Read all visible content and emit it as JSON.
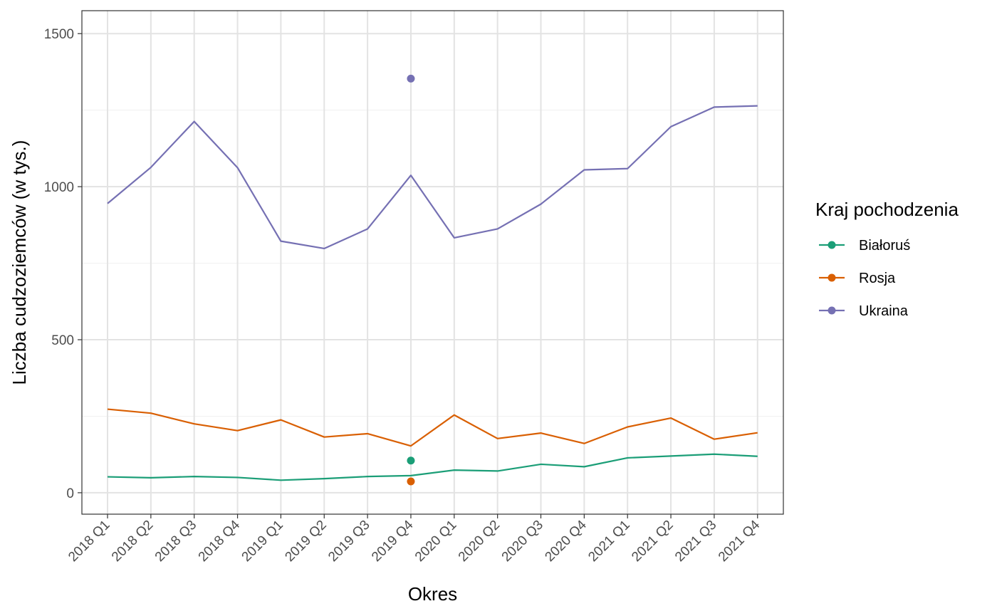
{
  "chart_data": {
    "type": "line",
    "title": "",
    "xlabel": "Okres",
    "ylabel": "Liczba cudzoziemców (w tys.)",
    "categories": [
      "2018 Q1",
      "2018 Q2",
      "2018 Q3",
      "2018 Q4",
      "2019 Q1",
      "2019 Q2",
      "2019 Q3",
      "2019 Q4",
      "2020 Q1",
      "2020 Q2",
      "2020 Q3",
      "2020 Q4",
      "2021 Q1",
      "2021 Q2",
      "2021 Q3",
      "2021 Q4"
    ],
    "ylim": [
      -70,
      1575
    ],
    "yticks": [
      0,
      500,
      1000,
      1500
    ],
    "grid": true,
    "legend_title": "Kraj pochodzenia",
    "legend_position": "right",
    "series": [
      {
        "name": "Białoruś",
        "color": "#1b9e77",
        "values": [
          52,
          49,
          53,
          50,
          41,
          46,
          53,
          56,
          74,
          71,
          93,
          85,
          114,
          120,
          126,
          119
        ],
        "point": {
          "x": "2019 Q4",
          "y": 105
        }
      },
      {
        "name": "Rosja",
        "color": "#d95f02",
        "values": [
          273,
          260,
          225,
          203,
          238,
          182,
          193,
          153,
          254,
          177,
          195,
          161,
          215,
          244,
          175,
          196
        ],
        "point": {
          "x": "2019 Q4",
          "y": 37
        }
      },
      {
        "name": "Ukraina",
        "color": "#7570b3",
        "values": [
          945,
          1063,
          1213,
          1062,
          822,
          798,
          862,
          1037,
          833,
          862,
          943,
          1055,
          1059,
          1196,
          1260,
          1264
        ],
        "point": {
          "x": "2019 Q4",
          "y": 1353
        }
      }
    ]
  }
}
